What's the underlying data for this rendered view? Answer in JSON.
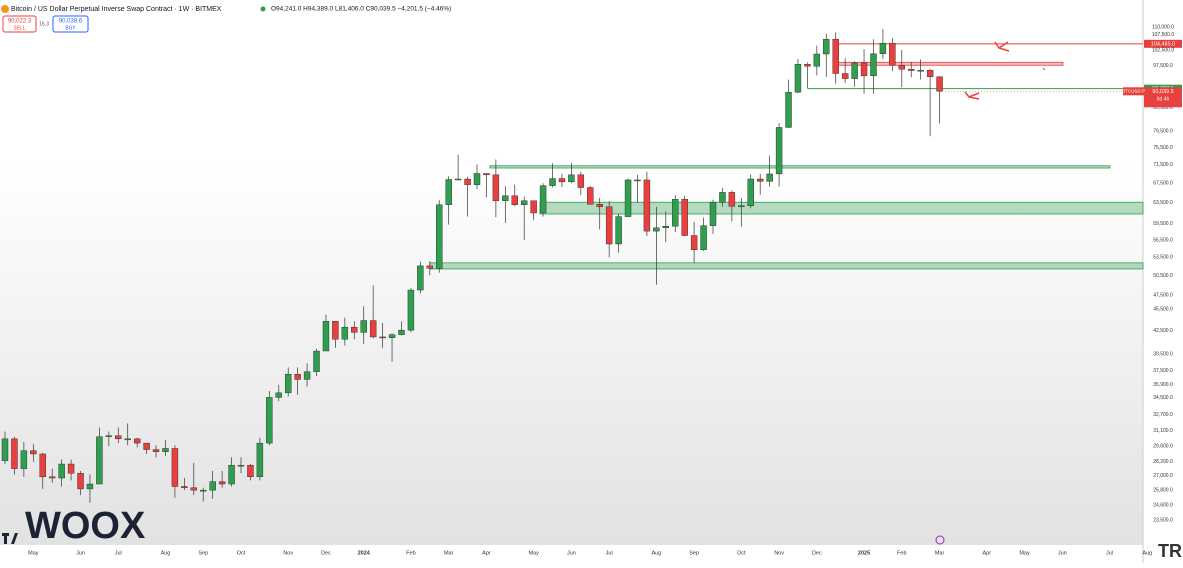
{
  "header": {
    "title": "Bitcoin / US Dollar Perpetual Inverse Swap Contract · 1W · BITMEX",
    "ohlc_text": "O94,241.0 H94,389.0 L81,406.0 C90,039.5 −4,201.5 (−4.46%)",
    "sell_price": "90,022.3",
    "sell_label": "SELL",
    "spread": "16.3",
    "buy_price": "90,038.6",
    "buy_label": "BUY"
  },
  "brand": "WOOX",
  "corner_logo": "TR",
  "chart_data": {
    "type": "candlestick",
    "log": true,
    "grid": false,
    "up_color": "#2f9e4f",
    "down_color": "#e8403e",
    "categories": [
      null,
      null,
      null,
      "May",
      null,
      null,
      null,
      null,
      "Jun",
      null,
      null,
      null,
      "Jul",
      null,
      null,
      null,
      null,
      "Aug",
      null,
      null,
      null,
      "Sep",
      null,
      null,
      null,
      "Oct",
      null,
      null,
      null,
      null,
      "Nov",
      null,
      null,
      null,
      "Dec",
      null,
      null,
      null,
      "2024",
      null,
      null,
      null,
      null,
      "Feb",
      null,
      null,
      null,
      "Mar",
      null,
      null,
      null,
      "Apr",
      null,
      null,
      null,
      null,
      "May",
      null,
      null,
      null,
      "Jun",
      null,
      null,
      null,
      "Jul",
      null,
      null,
      null,
      null,
      "Aug",
      null,
      null,
      null,
      "Sep",
      null,
      null,
      null,
      null,
      "Oct",
      null,
      null,
      null,
      "Nov",
      null,
      null,
      null,
      "Dec",
      null,
      null,
      null,
      null,
      "2025",
      null,
      null,
      null,
      "Feb",
      null,
      null,
      null,
      "Mar",
      null,
      null,
      null,
      null,
      "Apr",
      null,
      null,
      null,
      "May",
      null,
      null,
      null,
      "Jun",
      null,
      null,
      null,
      null,
      "Jul",
      null,
      null,
      null,
      "Aug",
      null,
      null
    ],
    "open": [
      28300,
      30300,
      27600,
      29200,
      28900,
      26900,
      26800,
      28000,
      27200,
      25900,
      26300,
      30500,
      30600,
      30300,
      30300,
      29900,
      29300,
      29100,
      29400,
      26100,
      26000,
      25800,
      25800,
      26500,
      26300,
      27900,
      27900,
      26900,
      29900,
      34500,
      35000,
      37100,
      36500,
      37400,
      39900,
      43800,
      41400,
      43000,
      42300,
      43900,
      41700,
      41600,
      42000,
      42600,
      48300,
      52100,
      51700,
      63100,
      68300,
      68400,
      67200,
      69600,
      69300,
      63900,
      64900,
      63100,
      63900,
      61500,
      67000,
      68500,
      67800,
      69300,
      66600,
      63200,
      62700,
      55800,
      60800,
      68200,
      68200,
      58100,
      58700,
      59000,
      64200,
      57300,
      54800,
      59100,
      63600,
      65600,
      62800,
      62900,
      68400,
      67900,
      69500,
      80400,
      89800,
      98000,
      97400,
      101200,
      106000,
      95200,
      93700,
      98400,
      94500,
      101300,
      104700,
      97700,
      96500,
      96100,
      96200,
      94241,
      null,
      null,
      null,
      null,
      null,
      null,
      null,
      null,
      null,
      null,
      null,
      null,
      null,
      null,
      null,
      null,
      null,
      null,
      null,
      null,
      null,
      null,
      null,
      null
    ],
    "high": [
      31000,
      30500,
      30000,
      29800,
      29000,
      27600,
      28400,
      28400,
      27400,
      27100,
      31400,
      31000,
      31400,
      31800,
      30400,
      29900,
      29700,
      30200,
      29700,
      26800,
      28100,
      26000,
      27400,
      27400,
      28600,
      28600,
      28000,
      30400,
      35200,
      35900,
      37900,
      37900,
      38400,
      40200,
      44700,
      43800,
      44300,
      43800,
      45900,
      49000,
      43600,
      42200,
      43800,
      48600,
      52800,
      52900,
      64000,
      69000,
      73800,
      68900,
      71600,
      69600,
      72700,
      66900,
      67200,
      64700,
      63900,
      67500,
      71900,
      69500,
      71900,
      70000,
      66900,
      64500,
      63800,
      61400,
      68500,
      69300,
      70000,
      62700,
      61800,
      65000,
      64900,
      59800,
      60600,
      64100,
      66500,
      66000,
      64400,
      69400,
      69500,
      73600,
      81500,
      93400,
      99600,
      98600,
      103900,
      107800,
      108300,
      99900,
      98900,
      102700,
      106000,
      109400,
      106400,
      102500,
      98700,
      99500,
      96500,
      94389,
      null,
      null,
      null,
      null,
      null,
      null,
      null,
      null,
      null,
      null,
      null,
      null,
      null,
      null,
      null,
      null,
      null,
      null,
      null,
      null,
      null,
      null,
      null,
      null
    ],
    "low": [
      28000,
      27100,
      26900,
      28200,
      25900,
      26400,
      26100,
      26600,
      25400,
      24800,
      26300,
      29600,
      29900,
      29700,
      29500,
      28900,
      28600,
      28700,
      25200,
      25800,
      25400,
      24900,
      25100,
      26000,
      26100,
      27200,
      26600,
      26600,
      29700,
      34100,
      34600,
      34800,
      35700,
      36900,
      39900,
      40300,
      40600,
      41400,
      40800,
      41500,
      40300,
      38600,
      41900,
      42300,
      47800,
      50600,
      51000,
      59300,
      68200,
      60800,
      66300,
      64600,
      60700,
      59600,
      62800,
      56500,
      60200,
      60800,
      66600,
      66700,
      67500,
      65000,
      63400,
      58400,
      53500,
      54300,
      60700,
      63500,
      57200,
      49100,
      56100,
      57900,
      57200,
      52600,
      54600,
      57600,
      62700,
      59900,
      58900,
      62400,
      65100,
      66800,
      66800,
      80300,
      89500,
      90800,
      94600,
      94200,
      92200,
      92400,
      91300,
      89300,
      89300,
      99700,
      95900,
      91200,
      94100,
      93400,
      78200,
      81406,
      null,
      null,
      null,
      null,
      null,
      null,
      null,
      null,
      null,
      null,
      null,
      null,
      null,
      null,
      null,
      null,
      null,
      null,
      null,
      null,
      null,
      null,
      null,
      null
    ],
    "close": [
      30300,
      27600,
      29200,
      28900,
      26900,
      26800,
      28000,
      27200,
      25900,
      26300,
      30500,
      30600,
      30300,
      30300,
      29900,
      29300,
      29100,
      29400,
      26100,
      26000,
      25800,
      25800,
      26500,
      26300,
      27900,
      27900,
      26900,
      29900,
      34500,
      35000,
      37100,
      36500,
      37400,
      39900,
      43800,
      41400,
      43000,
      42300,
      43900,
      41700,
      41600,
      42000,
      42600,
      48300,
      52100,
      51700,
      63100,
      68300,
      68400,
      67200,
      69600,
      69300,
      63900,
      64900,
      63100,
      63900,
      61500,
      67000,
      68500,
      67800,
      69300,
      66600,
      63200,
      62700,
      55800,
      60800,
      68200,
      68200,
      58100,
      58700,
      59000,
      64200,
      57300,
      54800,
      59100,
      63600,
      65600,
      62800,
      62900,
      68400,
      67900,
      69500,
      80400,
      89800,
      98000,
      97400,
      101200,
      106000,
      95200,
      93700,
      98400,
      94500,
      101300,
      104700,
      97700,
      96500,
      96100,
      96200,
      94241,
      90039.5,
      null,
      null,
      null,
      null,
      null,
      null,
      null,
      null,
      null,
      null,
      null,
      null,
      null,
      null,
      null,
      null,
      null,
      null,
      null,
      null,
      null,
      null,
      null,
      null
    ],
    "ylim": [
      22000,
      118000
    ],
    "yticks": [
      {
        "value": 110000,
        "label": "110,000.0"
      },
      {
        "value": 107500,
        "label": "107,500.0"
      },
      {
        "value": 102500,
        "label": "102,500.0"
      },
      {
        "value": 97500,
        "label": "97,500.0"
      },
      {
        "value": 85500,
        "label": "85,500.0"
      },
      {
        "value": 79500,
        "label": "79,500.0"
      },
      {
        "value": 75500,
        "label": "75,500.0"
      },
      {
        "value": 71500,
        "label": "71,500.0"
      },
      {
        "value": 67500,
        "label": "67,500.0"
      },
      {
        "value": 63500,
        "label": "63,500.0"
      },
      {
        "value": 59500,
        "label": "59,500.0"
      },
      {
        "value": 56500,
        "label": "56,500.0"
      },
      {
        "value": 53500,
        "label": "53,500.0"
      },
      {
        "value": 50500,
        "label": "50,500.0"
      },
      {
        "value": 47500,
        "label": "47,500.0"
      },
      {
        "value": 45500,
        "label": "45,500.0"
      },
      {
        "value": 42500,
        "label": "42,500.0"
      },
      {
        "value": 39500,
        "label": "39,500.0"
      },
      {
        "value": 37500,
        "label": "37,500.0"
      },
      {
        "value": 35900,
        "label": "35,900.0"
      },
      {
        "value": 34500,
        "label": "34,500.0"
      },
      {
        "value": 32700,
        "label": "32,700.0"
      },
      {
        "value": 31100,
        "label": "31,100.0"
      },
      {
        "value": 29600,
        "label": "29,600.0"
      },
      {
        "value": 28200,
        "label": "28,200.0"
      },
      {
        "value": 27000,
        "label": "27,000.0"
      },
      {
        "value": 25800,
        "label": "25,800.0"
      },
      {
        "value": 24600,
        "label": "24,600.0"
      },
      {
        "value": 23500,
        "label": "23,500.0"
      }
    ],
    "levels": [
      {
        "value": 104485,
        "label": "104,485.0",
        "color": "#e8403e"
      },
      {
        "value": 90787.5,
        "label": "90,787.5",
        "color": "#2f9e4f"
      }
    ],
    "zones": [
      {
        "low": 97700,
        "high": 98600,
        "color": "#e8403e"
      },
      {
        "low": 70800,
        "high": 71300,
        "color": "#2f9e4f"
      },
      {
        "low": 61300,
        "high": 63600,
        "color": "#2f9e4f"
      },
      {
        "low": 51600,
        "high": 52600,
        "color": "#2f9e4f"
      }
    ],
    "last_price": {
      "value": 90039.5,
      "label": "90,039.5",
      "symbol": "BTCUSD.P",
      "countdown": "6d 4h"
    }
  }
}
